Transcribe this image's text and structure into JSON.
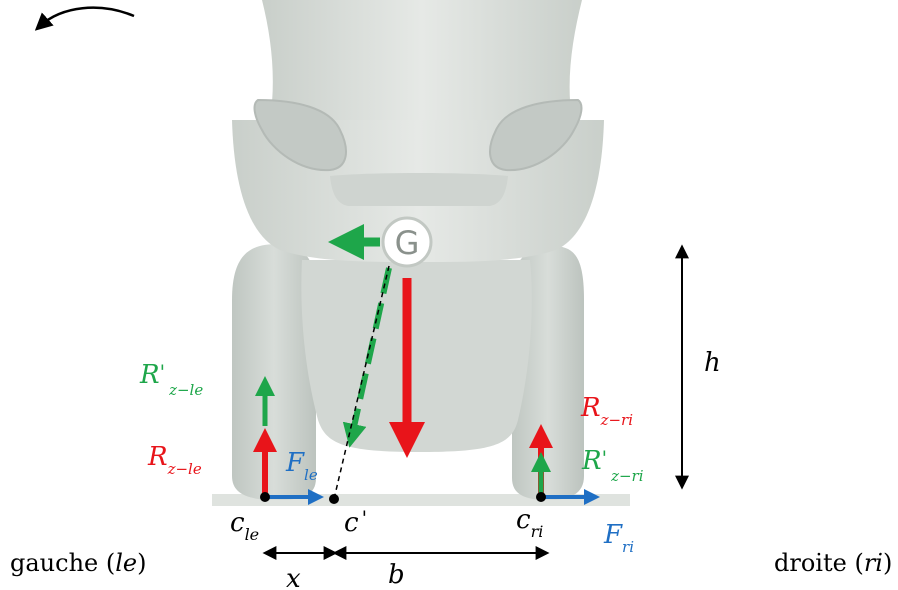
{
  "colors": {
    "red": "#e8141a",
    "green": "#1ea64a",
    "blue": "#1f6fc4",
    "black": "#000000",
    "vehicle_body": "#dfe3df",
    "vehicle_shadow": "#c9cfca"
  },
  "center_of_gravity": {
    "symbol": "G"
  },
  "labels": {
    "h": "h",
    "x": "x",
    "b": "b",
    "c_le": {
      "base": "c",
      "sub": "le"
    },
    "c_prime": {
      "base": "c",
      "mark": "'"
    },
    "c_ri": {
      "base": "c",
      "sub": "ri"
    },
    "R_prime_z_le": {
      "base": "R",
      "mark": "'",
      "sub": "z−le"
    },
    "R_z_le": {
      "base": "R",
      "sub": "z−le"
    },
    "F_le": {
      "base": "F",
      "sub": "le"
    },
    "R_z_ri": {
      "base": "R",
      "sub": "z−ri"
    },
    "R_prime_z_ri": {
      "base": "R",
      "mark": "'",
      "sub": "z−ri"
    },
    "F_ri": {
      "base": "F",
      "sub": "ri"
    }
  },
  "sides": {
    "left": {
      "word": "gauche",
      "code": "le"
    },
    "right": {
      "word": "droite",
      "code": "ri"
    }
  },
  "icons": {
    "rotation": "rotation-arrow-icon"
  }
}
